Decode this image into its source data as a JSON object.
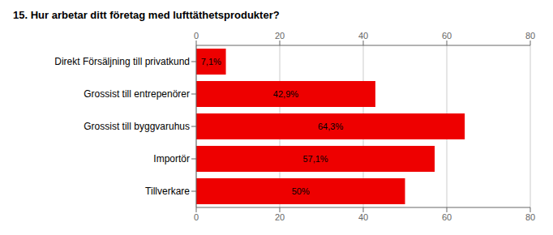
{
  "chart_data": {
    "type": "bar",
    "orientation": "horizontal",
    "title": "15. Hur arbetar ditt företag med lufttäthetsprodukter?",
    "categories": [
      "Direkt Försäljning till privatkund",
      "Grossist till entrepenörer",
      "Grossist till byggvaruhus",
      "Importör",
      "Tillverkare"
    ],
    "values": [
      7.1,
      42.9,
      64.3,
      57.1,
      50.0
    ],
    "value_labels": [
      "7,1%",
      "42,9%",
      "64,3%",
      "57,1%",
      "50%"
    ],
    "data_labels": true,
    "color": "#ee0000",
    "xlim": [
      0,
      80
    ],
    "xticks": [
      0,
      20,
      40,
      60,
      80
    ],
    "grid": true
  }
}
